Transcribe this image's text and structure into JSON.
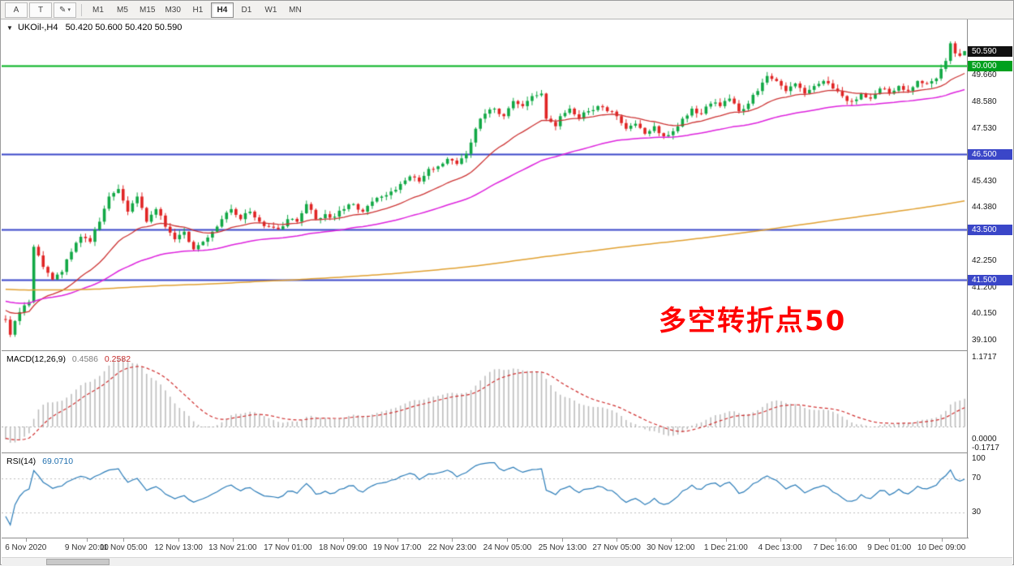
{
  "toolbar": {
    "tools": [
      {
        "name": "cursor-tool",
        "label": "A"
      },
      {
        "name": "text-tool",
        "label": "T"
      },
      {
        "name": "draw-tool",
        "label": "✎",
        "caret": "▾"
      }
    ],
    "timeframes": [
      {
        "label": "M1",
        "active": false
      },
      {
        "label": "M5",
        "active": false
      },
      {
        "label": "M15",
        "active": false
      },
      {
        "label": "M30",
        "active": false
      },
      {
        "label": "H1",
        "active": false
      },
      {
        "label": "H4",
        "active": true
      },
      {
        "label": "D1",
        "active": false
      },
      {
        "label": "W1",
        "active": false
      },
      {
        "label": "MN",
        "active": false
      }
    ]
  },
  "main_chart": {
    "header": {
      "marker": "▼",
      "symbol": "UKOil-,H4",
      "ohlc": "50.420 50.600 50.420 50.590"
    },
    "annotation": {
      "text": "多空转折点50",
      "color": "#ff0000"
    }
  },
  "macd_panel": {
    "label": "MACD(12,26,9)",
    "value_main": "0.4586",
    "value_signal": "0.2582",
    "axis_labels": [
      "1.1717",
      "0.0000",
      "-0.1717"
    ]
  },
  "rsi_panel": {
    "label": "RSI(14)",
    "value": "69.0710",
    "axis_labels": [
      "100",
      "70",
      "30"
    ]
  },
  "chart_data": {
    "type": "candlestick",
    "title": "UKOil-,H4",
    "timeframe": "H4",
    "last_candle": {
      "open": 50.42,
      "high": 50.6,
      "low": 50.42,
      "close": 50.59
    },
    "ylim": [
      38.68,
      51.85
    ],
    "visible_candles": 205,
    "noise": 0.2,
    "up_color": "#11a845",
    "down_color": "#e02424",
    "close_waypoints": [
      [
        0,
        39.9
      ],
      [
        1,
        39.3
      ],
      [
        3,
        40.2
      ],
      [
        5,
        40.6
      ],
      [
        6,
        42.8
      ],
      [
        8,
        42.0
      ],
      [
        10,
        41.5
      ],
      [
        12,
        41.8
      ],
      [
        14,
        42.6
      ],
      [
        16,
        43.2
      ],
      [
        18,
        43.0
      ],
      [
        20,
        43.8
      ],
      [
        22,
        44.8
      ],
      [
        24,
        45.1
      ],
      [
        26,
        44.2
      ],
      [
        28,
        44.8
      ],
      [
        30,
        43.8
      ],
      [
        32,
        44.3
      ],
      [
        34,
        43.6
      ],
      [
        36,
        43.1
      ],
      [
        38,
        43.4
      ],
      [
        40,
        42.7
      ],
      [
        42,
        43.0
      ],
      [
        44,
        43.4
      ],
      [
        46,
        43.9
      ],
      [
        48,
        44.3
      ],
      [
        50,
        43.9
      ],
      [
        52,
        44.2
      ],
      [
        54,
        43.8
      ],
      [
        56,
        43.6
      ],
      [
        58,
        43.5
      ],
      [
        60,
        43.9
      ],
      [
        62,
        43.8
      ],
      [
        64,
        44.5
      ],
      [
        66,
        43.9
      ],
      [
        68,
        44.1
      ],
      [
        70,
        44.0
      ],
      [
        72,
        44.3
      ],
      [
        74,
        44.5
      ],
      [
        76,
        44.2
      ],
      [
        78,
        44.6
      ],
      [
        80,
        44.8
      ],
      [
        82,
        45.0
      ],
      [
        84,
        45.3
      ],
      [
        86,
        45.6
      ],
      [
        88,
        45.4
      ],
      [
        90,
        45.9
      ],
      [
        92,
        46.0
      ],
      [
        94,
        46.3
      ],
      [
        96,
        46.1
      ],
      [
        98,
        46.5
      ],
      [
        100,
        47.5
      ],
      [
        102,
        48.1
      ],
      [
        104,
        48.3
      ],
      [
        106,
        48.0
      ],
      [
        108,
        48.6
      ],
      [
        110,
        48.4
      ],
      [
        112,
        48.8
      ],
      [
        114,
        48.9
      ],
      [
        115,
        47.9
      ],
      [
        117,
        47.6
      ],
      [
        118,
        48.0
      ],
      [
        120,
        48.3
      ],
      [
        122,
        47.9
      ],
      [
        124,
        48.2
      ],
      [
        126,
        48.4
      ],
      [
        128,
        48.2
      ],
      [
        130,
        48.0
      ],
      [
        132,
        47.5
      ],
      [
        134,
        47.7
      ],
      [
        136,
        47.3
      ],
      [
        138,
        47.6
      ],
      [
        140,
        47.2
      ],
      [
        142,
        47.4
      ],
      [
        144,
        47.9
      ],
      [
        146,
        48.3
      ],
      [
        148,
        48.1
      ],
      [
        150,
        48.5
      ],
      [
        152,
        48.4
      ],
      [
        154,
        48.7
      ],
      [
        156,
        48.2
      ],
      [
        158,
        48.5
      ],
      [
        160,
        49.0
      ],
      [
        162,
        49.6
      ],
      [
        164,
        49.4
      ],
      [
        166,
        49.0
      ],
      [
        168,
        49.3
      ],
      [
        170,
        48.9
      ],
      [
        172,
        49.2
      ],
      [
        174,
        49.4
      ],
      [
        176,
        49.1
      ],
      [
        178,
        48.8
      ],
      [
        180,
        48.6
      ],
      [
        182,
        48.9
      ],
      [
        184,
        48.7
      ],
      [
        186,
        49.1
      ],
      [
        188,
        48.9
      ],
      [
        190,
        49.2
      ],
      [
        192,
        49.0
      ],
      [
        194,
        49.4
      ],
      [
        196,
        49.3
      ],
      [
        198,
        49.5
      ],
      [
        200,
        50.2
      ],
      [
        201,
        50.9
      ],
      [
        202,
        50.5
      ],
      [
        203,
        50.4
      ],
      [
        204,
        50.59
      ]
    ],
    "preroll_waypoints": [
      [
        -310,
        42.2
      ],
      [
        -262,
        41.2
      ],
      [
        -208,
        40.7
      ],
      [
        -150,
        41.4
      ],
      [
        -100,
        41.0
      ],
      [
        -58,
        41.6
      ],
      [
        -30,
        40.8
      ],
      [
        -12,
        40.3
      ],
      [
        -2,
        40.1
      ]
    ],
    "levels": [
      {
        "price": 50.0,
        "color": "#00b01e",
        "width": 2
      },
      {
        "price": 46.5,
        "color": "#3a46c8",
        "width": 2
      },
      {
        "price": 43.5,
        "color": "#3a46c8",
        "width": 2
      },
      {
        "price": 41.5,
        "color": "#3a46c8",
        "width": 2
      }
    ],
    "moving_averages": [
      {
        "type": "ema",
        "period": 21,
        "color": "#cc3333",
        "width": 1.3
      },
      {
        "type": "ema",
        "period": 58,
        "color": "#dd22dd",
        "width": 1.5
      },
      {
        "type": "sma",
        "period": 300,
        "color": "#e0a030",
        "width": 1.5
      }
    ],
    "macd": {
      "fast": 12,
      "slow": 26,
      "signal": 9,
      "value": 0.4586,
      "signal_value": 0.2582,
      "hist_color": "#bdbdbd",
      "signal_color": "#cf2e2e"
    },
    "rsi": {
      "period": 14,
      "value": 69.071,
      "color": "#2b7cb8",
      "levels": [
        70,
        30
      ]
    },
    "y_axis": {
      "ticks": [
        "49.660",
        "48.580",
        "47.530",
        "45.430",
        "44.380",
        "42.250",
        "41.200",
        "40.150",
        "39.100"
      ],
      "badges": [
        {
          "label": "50.590",
          "price": 50.59,
          "bg": "#101010"
        },
        {
          "label": "50.000",
          "price": 50.0,
          "bg": "#00a01e"
        },
        {
          "label": "46.500",
          "price": 46.5,
          "bg": "#3a46c8"
        },
        {
          "label": "43.500",
          "price": 43.5,
          "bg": "#3a46c8"
        },
        {
          "label": "41.500",
          "price": 41.5,
          "bg": "#3a46c8"
        }
      ]
    },
    "x_axis": {
      "labels": [
        {
          "text": "6 Nov 2020",
          "pos": 0.025
        },
        {
          "text": "9 Nov 20:00",
          "pos": 0.088
        },
        {
          "text": "11 Nov 05:00",
          "pos": 0.126
        },
        {
          "text": "12 Nov 13:00",
          "pos": 0.183
        },
        {
          "text": "13 Nov 21:00",
          "pos": 0.239
        },
        {
          "text": "17 Nov 01:00",
          "pos": 0.296
        },
        {
          "text": "18 Nov 09:00",
          "pos": 0.353
        },
        {
          "text": "19 Nov 17:00",
          "pos": 0.409
        },
        {
          "text": "22 Nov 23:00",
          "pos": 0.466
        },
        {
          "text": "24 Nov 05:00",
          "pos": 0.523
        },
        {
          "text": "25 Nov 13:00",
          "pos": 0.58
        },
        {
          "text": "27 Nov 05:00",
          "pos": 0.636
        },
        {
          "text": "30 Nov 12:00",
          "pos": 0.692
        },
        {
          "text": "1 Dec 21:00",
          "pos": 0.749
        },
        {
          "text": "4 Dec 13:00",
          "pos": 0.805
        },
        {
          "text": "7 Dec 16:00",
          "pos": 0.862
        },
        {
          "text": "9 Dec 01:00",
          "pos": 0.918
        },
        {
          "text": "10 Dec 09:00",
          "pos": 0.972
        }
      ]
    }
  }
}
